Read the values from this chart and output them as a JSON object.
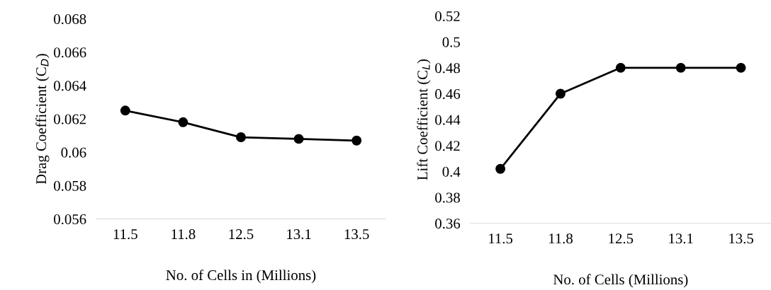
{
  "chart_data": [
    {
      "type": "line",
      "xlabel": "No. of Cells in (Millions)",
      "ylabel": "Drag Coefficient (C$_{D}$)",
      "categories": [
        "11.5",
        "11.8",
        "12.5",
        "13.1",
        "13.5"
      ],
      "series": [
        {
          "color": "#000000",
          "values": [
            0.0625,
            0.0618,
            0.0609,
            0.0608,
            0.0607
          ]
        }
      ],
      "ylim": [
        0.056,
        0.068
      ],
      "yticks": [
        0.056,
        0.058,
        0.06,
        0.062,
        0.064,
        0.066,
        0.068
      ],
      "marker": "circle",
      "line_style": "solid",
      "grid": false,
      "legend": false
    },
    {
      "type": "line",
      "xlabel": "No. of Cells (Millions)",
      "ylabel": "Lift Coefficient (C$_{L}$)",
      "categories": [
        "11.5",
        "11.8",
        "12.5",
        "13.1",
        "13.5"
      ],
      "series": [
        {
          "color": "#000000",
          "values": [
            0.402,
            0.46,
            0.48,
            0.48,
            0.48
          ]
        }
      ],
      "ylim": [
        0.36,
        0.52
      ],
      "yticks": [
        0.36,
        0.38,
        0.4,
        0.42,
        0.44,
        0.46,
        0.48,
        0.5,
        0.52
      ],
      "marker": "circle",
      "line_style": "solid",
      "grid": false,
      "legend": false
    }
  ]
}
